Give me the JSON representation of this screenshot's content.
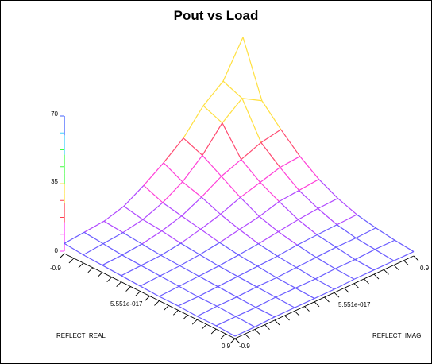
{
  "chart_data": {
    "type": "surface3d",
    "title": "Pout vs Load",
    "x_axis": {
      "label": "REFLECT_REAL",
      "range": [
        -0.9,
        0.9
      ],
      "tick_labels": [
        "-0.9",
        "5.551e-017",
        "0.9"
      ]
    },
    "y_axis": {
      "label": "REFLECT_IMAG",
      "range": [
        -0.9,
        0.9
      ],
      "tick_labels": [
        "-0.9",
        "5.551e-017",
        "0.9"
      ]
    },
    "z_axis": {
      "range": [
        0,
        70
      ],
      "tick_labels": [
        "0",
        "35",
        "70"
      ]
    },
    "grid_size": 10,
    "z_values": [
      [
        4,
        5,
        6,
        9,
        15,
        22,
        30,
        42,
        50,
        68
      ],
      [
        3,
        4,
        5,
        7,
        11,
        17,
        26,
        38,
        46,
        40
      ],
      [
        2.5,
        3,
        4,
        6,
        9,
        14,
        20,
        24,
        28,
        30
      ],
      [
        2,
        2.5,
        3,
        4.5,
        7,
        10,
        14,
        17,
        20,
        21
      ],
      [
        1.5,
        2,
        2.5,
        3.5,
        5,
        7,
        9,
        12,
        13,
        14
      ],
      [
        1,
        1.5,
        2,
        2.5,
        3.5,
        4.5,
        6,
        7.5,
        8.5,
        9
      ],
      [
        1,
        1,
        1.5,
        2,
        2.5,
        3,
        4,
        4.5,
        5,
        5.5
      ],
      [
        0.5,
        1,
        1,
        1.5,
        1.5,
        2,
        2.5,
        3,
        3,
        3.5
      ],
      [
        0.5,
        0.5,
        0.5,
        1,
        1,
        1,
        1.5,
        1.5,
        2,
        2
      ],
      [
        0,
        0,
        0.5,
        0.5,
        0.5,
        0.5,
        1,
        1,
        1,
        1
      ]
    ],
    "colormap": [
      "#6a5cff",
      "#c040ff",
      "#ff40c8",
      "#ff5050",
      "#ffe040",
      "#40ff40",
      "#40d0ff",
      "#4060ff"
    ]
  }
}
